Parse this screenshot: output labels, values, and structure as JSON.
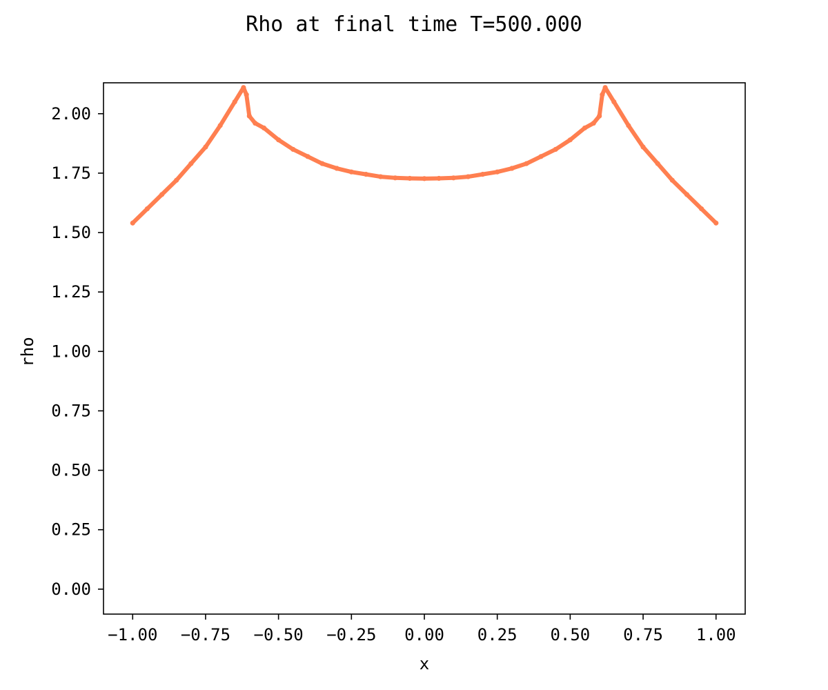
{
  "chart_data": {
    "type": "scatter",
    "title": "Rho at final time T=500.000",
    "xlabel": "x",
    "ylabel": "rho",
    "xlim": [
      -1.1,
      1.1
    ],
    "ylim": [
      -0.105,
      2.13
    ],
    "xticks": [
      -1.0,
      -0.75,
      -0.5,
      -0.25,
      0.0,
      0.25,
      0.5,
      0.75,
      1.0
    ],
    "xtick_labels": [
      "−1.00",
      "−0.75",
      "−0.50",
      "−0.25",
      "0.00",
      "0.25",
      "0.50",
      "0.75",
      "1.00"
    ],
    "yticks": [
      0.0,
      0.25,
      0.5,
      0.75,
      1.0,
      1.25,
      1.5,
      1.75,
      2.0
    ],
    "ytick_labels": [
      "0.00",
      "0.25",
      "0.50",
      "0.75",
      "1.00",
      "1.25",
      "1.50",
      "1.75",
      "2.00"
    ],
    "grid": false,
    "series": [
      {
        "color": "#ff7f50",
        "x": [
          -1.0,
          -0.95,
          -0.9,
          -0.85,
          -0.8,
          -0.75,
          -0.7,
          -0.65,
          -0.62,
          -0.61,
          -0.6,
          -0.58,
          -0.55,
          -0.5,
          -0.45,
          -0.4,
          -0.35,
          -0.3,
          -0.25,
          -0.2,
          -0.15,
          -0.1,
          -0.05,
          0.0,
          0.05,
          0.1,
          0.15,
          0.2,
          0.25,
          0.3,
          0.35,
          0.4,
          0.45,
          0.5,
          0.55,
          0.58,
          0.6,
          0.61,
          0.62,
          0.65,
          0.7,
          0.75,
          0.8,
          0.85,
          0.9,
          0.95,
          1.0
        ],
        "y": [
          1.54,
          1.6,
          1.66,
          1.72,
          1.79,
          1.86,
          1.95,
          2.05,
          2.11,
          2.08,
          1.99,
          1.96,
          1.94,
          1.89,
          1.85,
          1.82,
          1.79,
          1.77,
          1.755,
          1.745,
          1.735,
          1.73,
          1.728,
          1.727,
          1.728,
          1.73,
          1.735,
          1.745,
          1.755,
          1.77,
          1.79,
          1.82,
          1.85,
          1.89,
          1.94,
          1.96,
          1.99,
          2.08,
          2.11,
          2.05,
          1.95,
          1.86,
          1.79,
          1.72,
          1.66,
          1.6,
          1.54
        ]
      }
    ]
  }
}
